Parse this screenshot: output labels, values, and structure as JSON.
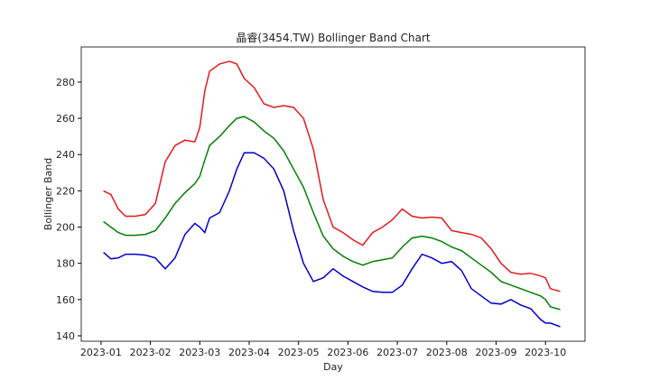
{
  "chart_data": {
    "type": "line",
    "title": "晶睿(3454.TW) Bollinger Band Chart",
    "xlabel": "Day",
    "ylabel": "Bollinger Band",
    "x": [
      1.05,
      1.2,
      1.35,
      1.5,
      1.7,
      1.9,
      2.1,
      2.3,
      2.5,
      2.7,
      2.9,
      3.0,
      3.1,
      3.2,
      3.4,
      3.6,
      3.75,
      3.9,
      4.1,
      4.3,
      4.5,
      4.7,
      4.9,
      5.1,
      5.3,
      5.5,
      5.7,
      5.9,
      6.1,
      6.3,
      6.5,
      6.7,
      6.9,
      7.1,
      7.3,
      7.5,
      7.7,
      7.9,
      8.1,
      8.3,
      8.5,
      8.7,
      8.9,
      9.1,
      9.3,
      9.5,
      9.7,
      9.9,
      10.0,
      10.1,
      10.3
    ],
    "series": [
      {
        "color": "#e41a1c",
        "values": [
          220,
          218,
          210,
          206,
          206,
          207,
          213,
          236,
          245,
          248,
          247,
          255,
          275,
          286,
          290,
          291.5,
          290,
          282,
          277,
          268,
          266,
          267,
          266,
          260,
          243,
          215,
          200,
          197,
          193,
          190,
          197,
          200,
          204,
          210,
          206,
          205,
          205.5,
          205,
          198,
          197,
          196,
          194,
          188,
          180,
          175,
          174,
          174.5,
          173,
          172,
          166,
          164.5
        ]
      },
      {
        "color": "#008000",
        "values": [
          203,
          200,
          197,
          195.5,
          195.5,
          196,
          198,
          205,
          213,
          219,
          224,
          228,
          237,
          245,
          250,
          256,
          260,
          261,
          258,
          253,
          249,
          242,
          232,
          222,
          208,
          195,
          188,
          184,
          181,
          179,
          181,
          182,
          183,
          189,
          194,
          195,
          194,
          192,
          189,
          187,
          183,
          179,
          175,
          170,
          168,
          166,
          164,
          162,
          160,
          156,
          154.5
        ]
      },
      {
        "color": "#0000cc",
        "values": [
          186,
          182.5,
          183,
          185,
          185,
          184.5,
          183,
          177,
          183,
          196,
          202,
          200,
          197,
          205,
          208,
          220,
          232,
          241,
          241,
          238,
          232,
          220,
          198,
          180,
          170,
          172,
          177,
          173,
          170,
          167,
          164.5,
          164,
          164,
          168,
          177,
          185,
          183,
          180,
          181,
          176,
          166,
          162,
          158,
          157.5,
          160,
          157,
          155,
          149,
          147,
          147,
          145
        ]
      }
    ],
    "xlim": [
      0.6,
      10.8
    ],
    "xticks": [
      {
        "value": 1,
        "label": "2023-01"
      },
      {
        "value": 2,
        "label": "2023-02"
      },
      {
        "value": 3,
        "label": "2023-03"
      },
      {
        "value": 4,
        "label": "2023-04"
      },
      {
        "value": 5,
        "label": "2023-05"
      },
      {
        "value": 6,
        "label": "2023-06"
      },
      {
        "value": 7,
        "label": "2023-07"
      },
      {
        "value": 8,
        "label": "2023-08"
      },
      {
        "value": 9,
        "label": "2023-09"
      },
      {
        "value": 10,
        "label": "2023-10"
      }
    ],
    "ylim": [
      137,
      299.4
    ],
    "yticks": [
      140,
      160,
      180,
      200,
      220,
      240,
      260,
      280
    ],
    "grid": false
  }
}
